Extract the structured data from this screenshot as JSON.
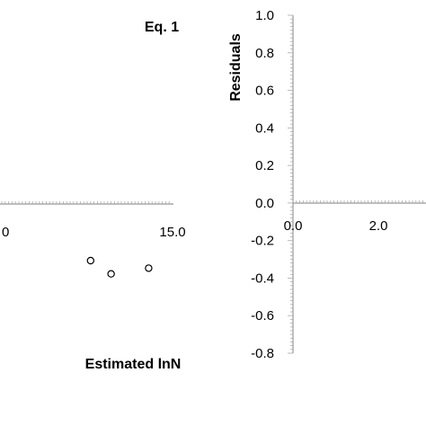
{
  "chart_data": [
    {
      "type": "scatter",
      "title": "Eq. 1",
      "xlabel": "Estimated lnN",
      "ylabel": "",
      "x_tick_labels": [
        "0",
        "15.0"
      ],
      "x_tick_label_prefix": ".",
      "series": [
        {
          "x": [
            12.6,
            13.2,
            14.3
          ],
          "y": [
            -0.3,
            -0.37,
            -0.34
          ]
        }
      ]
    },
    {
      "type": "scatter",
      "title": "",
      "xlabel": "",
      "ylabel": "Residuals",
      "ylim": [
        -0.8,
        1.0
      ],
      "y_tick_labels": [
        "1.0",
        "0.8",
        "0.6",
        "0.4",
        "0.2",
        "0.0",
        "-0.2",
        "-0.4",
        "-0.6",
        "-0.8"
      ],
      "x_tick_labels": [
        "0.0",
        "2.0"
      ],
      "series": []
    }
  ]
}
